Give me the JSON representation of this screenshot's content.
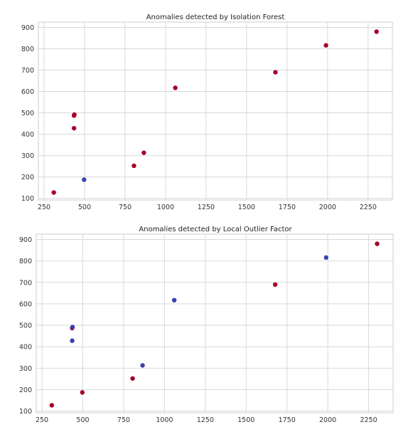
{
  "colors": {
    "anomaly": "#a50026",
    "normal": "#3a3fb0",
    "grid": "#d9d9d9",
    "frame": "#cccccc"
  },
  "chart_data": [
    {
      "type": "scatter",
      "title": "Anomalies detected by Isolation Forest",
      "xlabel": "",
      "ylabel": "",
      "xlim": [
        215,
        2400
      ],
      "ylim": [
        92,
        925
      ],
      "xticks": [
        250,
        500,
        750,
        1000,
        1250,
        1500,
        1750,
        2000,
        2250
      ],
      "yticks": [
        100,
        200,
        300,
        400,
        500,
        600,
        700,
        800,
        900
      ],
      "grid": true,
      "points": [
        {
          "x": 310,
          "y": 127,
          "class": "anomaly"
        },
        {
          "x": 435,
          "y": 428,
          "class": "anomaly"
        },
        {
          "x": 435,
          "y": 487,
          "class": "anomaly"
        },
        {
          "x": 437,
          "y": 492,
          "class": "anomaly"
        },
        {
          "x": 497,
          "y": 187,
          "class": "normal"
        },
        {
          "x": 805,
          "y": 252,
          "class": "anomaly"
        },
        {
          "x": 866,
          "y": 313,
          "class": "anomaly"
        },
        {
          "x": 1060,
          "y": 617,
          "class": "anomaly"
        },
        {
          "x": 1678,
          "y": 690,
          "class": "anomaly"
        },
        {
          "x": 1990,
          "y": 816,
          "class": "anomaly"
        },
        {
          "x": 2302,
          "y": 880,
          "class": "anomaly"
        }
      ]
    },
    {
      "type": "scatter",
      "title": "Anomalies detected by Local Outlier Factor",
      "xlabel": "",
      "ylabel": "",
      "xlim": [
        215,
        2400
      ],
      "ylim": [
        92,
        925
      ],
      "xticks": [
        250,
        500,
        750,
        1000,
        1250,
        1500,
        1750,
        2000,
        2250
      ],
      "yticks": [
        100,
        200,
        300,
        400,
        500,
        600,
        700,
        800,
        900
      ],
      "grid": true,
      "points": [
        {
          "x": 310,
          "y": 127,
          "class": "anomaly"
        },
        {
          "x": 435,
          "y": 428,
          "class": "normal"
        },
        {
          "x": 435,
          "y": 487,
          "class": "anomaly"
        },
        {
          "x": 437,
          "y": 492,
          "class": "normal"
        },
        {
          "x": 497,
          "y": 187,
          "class": "anomaly"
        },
        {
          "x": 805,
          "y": 252,
          "class": "anomaly"
        },
        {
          "x": 866,
          "y": 313,
          "class": "normal"
        },
        {
          "x": 1060,
          "y": 617,
          "class": "normal"
        },
        {
          "x": 1678,
          "y": 690,
          "class": "anomaly"
        },
        {
          "x": 1990,
          "y": 816,
          "class": "normal"
        },
        {
          "x": 2302,
          "y": 880,
          "class": "anomaly"
        }
      ]
    }
  ]
}
